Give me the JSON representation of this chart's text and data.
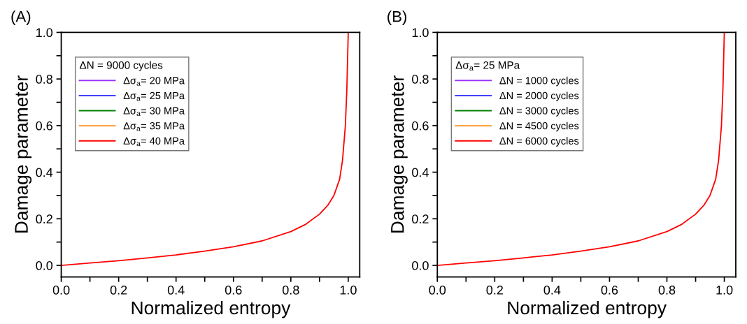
{
  "chart_data": [
    {
      "type": "line",
      "annotations": [
        "(A)"
      ],
      "xlabel": "Normalized entropy",
      "ylabel": "Damage parameter",
      "legend_title": "ΔN = 9000 cycles",
      "legend": "top left",
      "grid": false,
      "x": [
        0,
        0.1,
        0.2,
        0.3,
        0.4,
        0.5,
        0.6,
        0.7,
        0.8,
        0.85,
        0.9,
        0.93,
        0.95,
        0.97,
        0.98,
        0.99,
        0.995,
        0.998,
        1.0
      ],
      "series": [
        {
          "name": "Δσ$_{a}$= 20 MPa",
          "color": "#9933ff",
          "values": [
            null,
            null,
            null,
            null,
            null,
            null,
            null,
            null,
            null,
            null,
            null,
            null,
            null,
            null,
            null,
            null,
            null,
            null,
            null
          ]
        },
        {
          "name": "Δσ$_{a}$= 25 MPa",
          "color": "#3333ff",
          "values": [
            null,
            null,
            null,
            null,
            null,
            null,
            null,
            null,
            null,
            null,
            null,
            null,
            null,
            null,
            null,
            null,
            null,
            null,
            null
          ]
        },
        {
          "name": "Δσ$_{a}$= 30 MPa",
          "color": "#008000",
          "values": [
            null,
            null,
            null,
            null,
            null,
            null,
            null,
            null,
            null,
            null,
            null,
            null,
            null,
            null,
            null,
            null,
            null,
            null,
            null
          ]
        },
        {
          "name": "Δσ$_{a}$= 35 MPa",
          "color": "#ff8c1a",
          "values": [
            null,
            null,
            null,
            null,
            null,
            null,
            null,
            null,
            null,
            null,
            null,
            null,
            null,
            null,
            null,
            null,
            null,
            null,
            null
          ]
        },
        {
          "name": "Δσ$_{a}$= 40 MPa",
          "color": "#ff0000",
          "values": [
            0,
            0.01,
            0.02,
            0.032,
            0.045,
            0.061,
            0.08,
            0.105,
            0.145,
            0.175,
            0.22,
            0.26,
            0.3,
            0.37,
            0.45,
            0.6,
            0.75,
            0.9,
            1.0
          ]
        }
      ],
      "xlim": [
        0,
        1.04
      ],
      "ylim": [
        -0.05,
        1.0
      ],
      "xticks": [
        {
          "value": 0.0,
          "label": "0.0"
        },
        {
          "value": 0.1,
          "label": null
        },
        {
          "value": 0.2,
          "label": "0.2"
        },
        {
          "value": 0.3,
          "label": null
        },
        {
          "value": 0.4,
          "label": "0.4"
        },
        {
          "value": 0.5,
          "label": null
        },
        {
          "value": 0.6,
          "label": "0.6"
        },
        {
          "value": 0.7,
          "label": null
        },
        {
          "value": 0.8,
          "label": "0.8"
        },
        {
          "value": 0.9,
          "label": null
        },
        {
          "value": 1.0,
          "label": "1.0"
        }
      ],
      "yticks": [
        {
          "value": 0.0,
          "label": "0.0"
        },
        {
          "value": 0.1,
          "label": null
        },
        {
          "value": 0.2,
          "label": "0.2"
        },
        {
          "value": 0.3,
          "label": null
        },
        {
          "value": 0.4,
          "label": "0.4"
        },
        {
          "value": 0.5,
          "label": null
        },
        {
          "value": 0.6,
          "label": "0.6"
        },
        {
          "value": 0.7,
          "label": null
        },
        {
          "value": 0.8,
          "label": "0.8"
        },
        {
          "value": 0.9,
          "label": null
        },
        {
          "value": 1.0,
          "label": "1.0"
        }
      ]
    },
    {
      "type": "line",
      "annotations": [
        "(B)"
      ],
      "xlabel": "Normalized entropy",
      "ylabel": "Damage parameter",
      "legend_title": "Δσ$_{a}$= 25 MPa",
      "legend": "top left",
      "grid": false,
      "x": [
        0,
        0.1,
        0.2,
        0.3,
        0.4,
        0.5,
        0.6,
        0.7,
        0.8,
        0.85,
        0.9,
        0.93,
        0.95,
        0.97,
        0.98,
        0.99,
        0.995,
        0.998,
        1.0
      ],
      "series": [
        {
          "name": "ΔN = 1000 cycles",
          "color": "#9933ff",
          "values": [
            null,
            null,
            null,
            null,
            null,
            null,
            null,
            null,
            null,
            null,
            null,
            null,
            null,
            null,
            null,
            null,
            null,
            null,
            null
          ]
        },
        {
          "name": "ΔN = 2000 cycles",
          "color": "#3333ff",
          "values": [
            null,
            null,
            null,
            null,
            null,
            null,
            null,
            null,
            null,
            null,
            null,
            null,
            null,
            null,
            null,
            null,
            null,
            null,
            null
          ]
        },
        {
          "name": "ΔN = 3000 cycles",
          "color": "#008000",
          "values": [
            null,
            null,
            null,
            null,
            null,
            null,
            null,
            null,
            null,
            null,
            null,
            null,
            null,
            null,
            null,
            null,
            null,
            null,
            null
          ]
        },
        {
          "name": "ΔN = 4500 cycles",
          "color": "#ff8c1a",
          "values": [
            null,
            null,
            null,
            null,
            null,
            null,
            null,
            null,
            null,
            null,
            null,
            null,
            null,
            null,
            null,
            null,
            null,
            null,
            null
          ]
        },
        {
          "name": "ΔN = 6000 cycles",
          "color": "#ff0000",
          "values": [
            0,
            0.01,
            0.02,
            0.032,
            0.045,
            0.061,
            0.08,
            0.105,
            0.145,
            0.175,
            0.22,
            0.26,
            0.3,
            0.37,
            0.45,
            0.6,
            0.75,
            0.9,
            1.0
          ]
        }
      ],
      "xlim": [
        0,
        1.04
      ],
      "ylim": [
        -0.05,
        1.0
      ],
      "xticks": [
        {
          "value": 0.0,
          "label": "0.0"
        },
        {
          "value": 0.1,
          "label": null
        },
        {
          "value": 0.2,
          "label": "0.2"
        },
        {
          "value": 0.3,
          "label": null
        },
        {
          "value": 0.4,
          "label": "0.4"
        },
        {
          "value": 0.5,
          "label": null
        },
        {
          "value": 0.6,
          "label": "0.6"
        },
        {
          "value": 0.7,
          "label": null
        },
        {
          "value": 0.8,
          "label": "0.8"
        },
        {
          "value": 0.9,
          "label": null
        },
        {
          "value": 1.0,
          "label": "1.0"
        }
      ],
      "yticks": [
        {
          "value": 0.0,
          "label": "0.0"
        },
        {
          "value": 0.1,
          "label": null
        },
        {
          "value": 0.2,
          "label": "0.2"
        },
        {
          "value": 0.3,
          "label": null
        },
        {
          "value": 0.4,
          "label": "0.4"
        },
        {
          "value": 0.5,
          "label": null
        },
        {
          "value": 0.6,
          "label": "0.6"
        },
        {
          "value": 0.7,
          "label": null
        },
        {
          "value": 0.8,
          "label": "0.8"
        },
        {
          "value": 0.9,
          "label": null
        },
        {
          "value": 1.0,
          "label": "1.0"
        }
      ]
    }
  ]
}
